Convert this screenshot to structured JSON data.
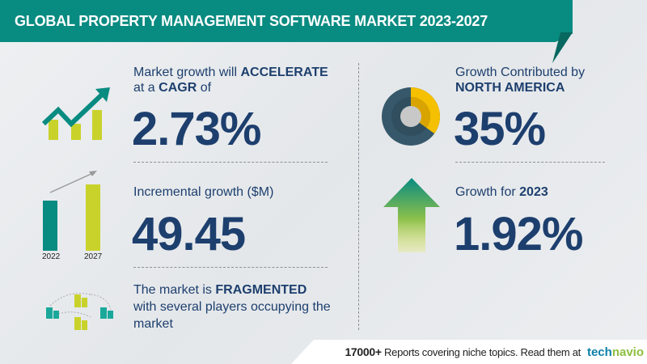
{
  "header": {
    "title": "GLOBAL PROPERTY MANAGEMENT SOFTWARE MARKET 2023-2027"
  },
  "cagr": {
    "line1_pre": "Market growth will ",
    "line1_bold": "ACCELERATE",
    "line2_pre": "at a ",
    "line2_bold": "CAGR",
    "line2_post": "  of",
    "value": "2.73%",
    "icon": "growth-chart-icon"
  },
  "incremental": {
    "label": "Incremental growth ($M)",
    "value": "49.45",
    "bar_years": [
      "2022",
      "2027"
    ]
  },
  "fragmented": {
    "line1_pre": "The market is ",
    "line1_bold": "FRAGMENTED",
    "line2": "with several players occupying the",
    "line3": "market",
    "icon": "buildings-network-icon"
  },
  "region": {
    "line1": "Growth Contributed by",
    "line2": "NORTH AMERICA",
    "value": "35%",
    "share": 35,
    "icon": "donut-chart-icon"
  },
  "growth_2023": {
    "label_pre": "Growth for ",
    "label_bold": "2023",
    "value": "1.92%",
    "icon": "up-arrow-icon"
  },
  "footer": {
    "count": "17000+",
    "text": " Reports covering niche topics. Read them at",
    "logo_a": "tech",
    "logo_b": "navio"
  },
  "colors": {
    "teal": "#088b81",
    "navy": "#1d3f6e",
    "yellow": "#c9d22a",
    "gold": "#f5c000",
    "slate": "#36586a"
  }
}
